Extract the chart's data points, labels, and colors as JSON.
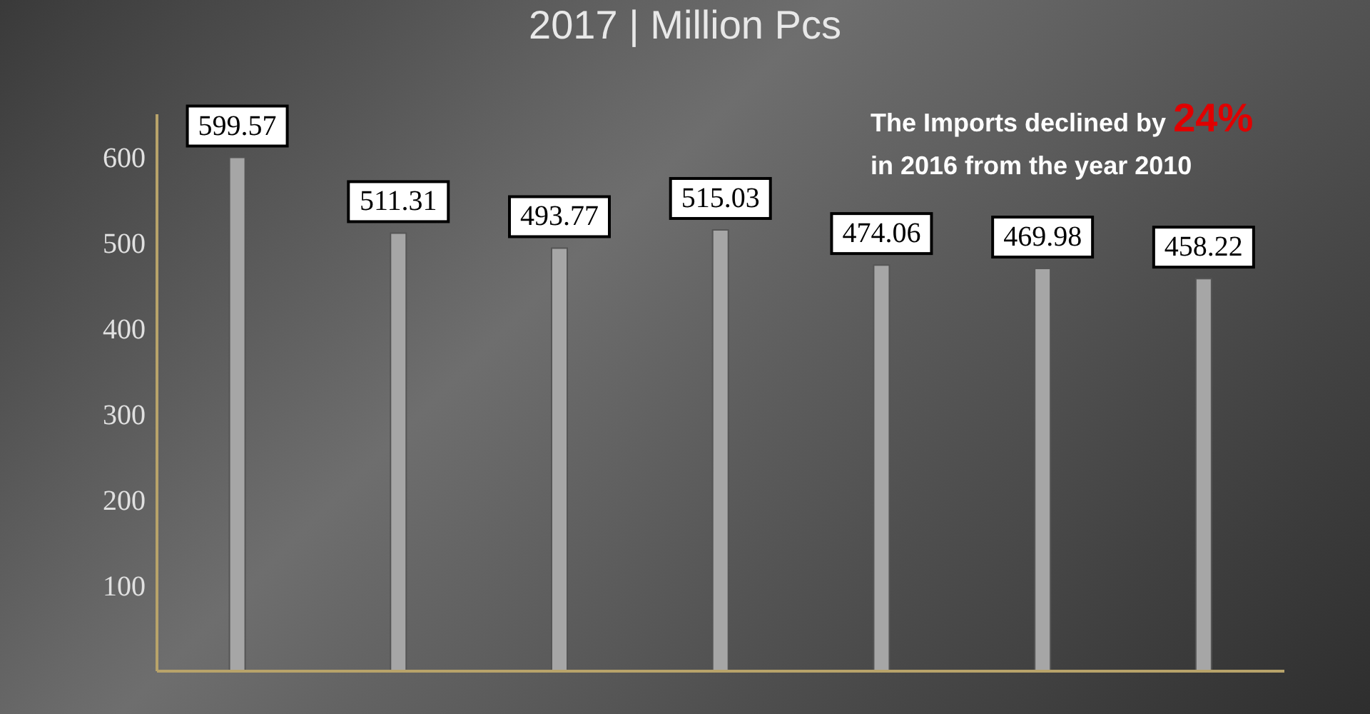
{
  "chart_data": {
    "type": "bar",
    "title": "2017 | Million Pcs",
    "categories": [
      null,
      null,
      null,
      null,
      null,
      null,
      null
    ],
    "values": [
      599.57,
      511.31,
      493.77,
      515.03,
      474.06,
      469.98,
      458.22
    ],
    "color": "#a6a6a6",
    "ylim": [
      0,
      650
    ],
    "yticks": [
      100,
      200,
      300,
      400,
      500,
      600
    ],
    "data_labels": true,
    "grid": false,
    "legend": false,
    "annotations": [
      "The Imports declined by",
      "24%",
      "in 2016 from the year 2010"
    ]
  }
}
